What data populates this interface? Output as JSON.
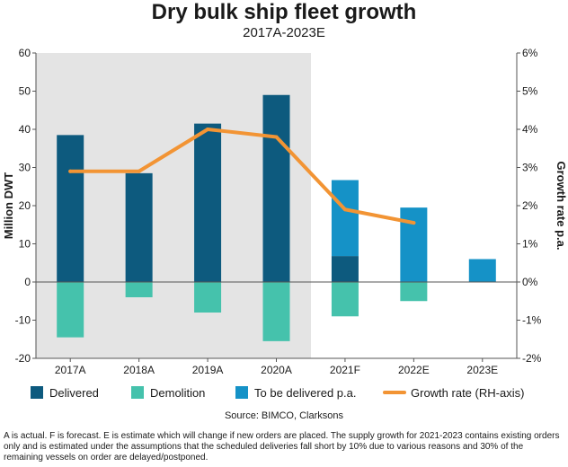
{
  "chart_data": {
    "type": "bar",
    "title": "Dry bulk ship fleet growth",
    "subtitle": "2017A-2023E",
    "categories": [
      "2017A",
      "2018A",
      "2019A",
      "2020A",
      "2021F",
      "2022E",
      "2023E"
    ],
    "series": [
      {
        "name": "Delivered",
        "type": "bar",
        "values": [
          38.5,
          28.5,
          41.5,
          49,
          6.8,
          null,
          null
        ],
        "color": "#0d5a7e"
      },
      {
        "name": "Demolition",
        "type": "bar",
        "values": [
          -14.5,
          -4,
          -8,
          -15.5,
          -9,
          -5,
          null
        ],
        "color": "#45c2ac"
      },
      {
        "name": "To be delivered p.a.",
        "type": "bar",
        "values": [
          null,
          null,
          null,
          null,
          19.9,
          19.5,
          6
        ],
        "color": "#1592c7"
      },
      {
        "name": "Growth rate (RH-axis)",
        "type": "line",
        "axis": "right",
        "values": [
          2.9,
          2.9,
          4.0,
          3.8,
          1.9,
          1.55,
          null
        ],
        "unit": "%",
        "color": "#f29434"
      }
    ],
    "ylabel": "Million DWT",
    "ylabel_right": "Growth rate p.a.",
    "ylim": [
      -20,
      60
    ],
    "ylim_right": [
      -2,
      6
    ],
    "yticks": [
      "60",
      "50",
      "40",
      "30",
      "20",
      "10",
      "0",
      "-10",
      "-20"
    ],
    "yticks_right": [
      "6%",
      "5%",
      "4%",
      "3%",
      "2%",
      "1%",
      "0%",
      "-1%",
      "-2%"
    ],
    "shaded_region": "2017A-2020A (actual)",
    "legend": [
      "Delivered",
      "Demolition",
      "To be delivered p.a.",
      "Growth rate (RH-axis)"
    ],
    "source": "Source: BIMCO, Clarksons",
    "note": "A is actual. F is forecast. E is estimate which will change if new orders are placed. The supply growth for 2021-2023 contains existing orders only and is estimated under the assumptions that the scheduled deliveries fall short by 10% due to various reasons and 30% of the remaining vessels on order are delayed/postponed."
  }
}
